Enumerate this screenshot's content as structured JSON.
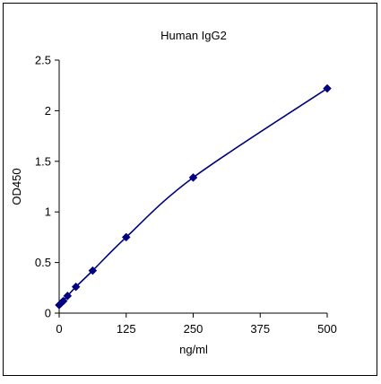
{
  "chart_data": {
    "type": "scatter",
    "title": "Human IgG2",
    "xlabel": "ng/ml",
    "ylabel": "OD450",
    "xlim": [
      0,
      500
    ],
    "ylim": [
      0,
      2.5
    ],
    "x_ticks": [
      0,
      125,
      250,
      375,
      500
    ],
    "x_tick_labels": [
      "0",
      "125",
      "250",
      "375",
      "500"
    ],
    "y_ticks": [
      0,
      0.5,
      1,
      1.5,
      2,
      2.5
    ],
    "y_tick_labels": [
      "0",
      "0.5",
      "1",
      "1.5",
      "2",
      "2.5"
    ],
    "grid": false,
    "legend": "none",
    "fit_line": "smooth curve",
    "series": [
      {
        "x": [
          0,
          3.9,
          7.8,
          15.6,
          31.25,
          62.5,
          125,
          250,
          500
        ],
        "y": [
          0.08,
          0.1,
          0.12,
          0.17,
          0.26,
          0.42,
          0.75,
          1.34,
          2.22
        ],
        "color": "#000080",
        "marker": "diamond"
      }
    ]
  }
}
